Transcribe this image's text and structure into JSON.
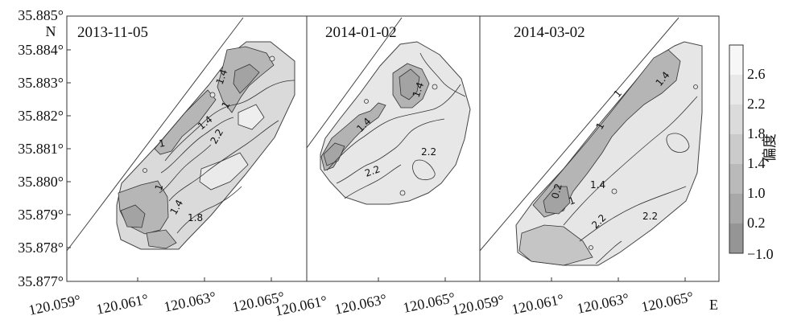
{
  "figure": {
    "y_axis": {
      "ticks": [
        "35.885°",
        "35.884°",
        "35.883°",
        "35.882°",
        "35.881°",
        "35.880°",
        "35.879°",
        "35.878°",
        "35.877°"
      ],
      "direction_label": "N"
    },
    "panels": [
      {
        "date": "2013-11-05",
        "x_ticks": [
          "120.059°",
          "120.061°",
          "120.063°",
          "120.065°"
        ],
        "contour_labels": [
          "1.4",
          "1",
          "1.4",
          "2.2",
          "1",
          "1",
          "1.4",
          "1.8"
        ]
      },
      {
        "date": "2014-01-02",
        "x_ticks": [
          "120.061°",
          "120.063°",
          "120.065°"
        ],
        "contour_labels": [
          "1.4",
          "1.4",
          "2.2",
          "2.2"
        ]
      },
      {
        "date": "2014-03-02",
        "x_ticks": [
          "120.059°",
          "120.061°",
          "120.063°",
          "120.065°"
        ],
        "contour_labels": [
          "1.4",
          "1",
          "1",
          "0.2",
          "1",
          "1.4",
          "2.2",
          "2.2"
        ]
      }
    ],
    "x_direction_label": "E",
    "colorbar": {
      "title": "偏度",
      "ticks": [
        "2.6",
        "2.2",
        "1.8",
        "1.4",
        "1.0",
        "0.2",
        "−1.0"
      ],
      "colors": [
        "#f7f7f7",
        "#e9e9e9",
        "#dbdbdb",
        "#cbcbcb",
        "#bababa",
        "#a8a8a8",
        "#959595"
      ]
    }
  }
}
